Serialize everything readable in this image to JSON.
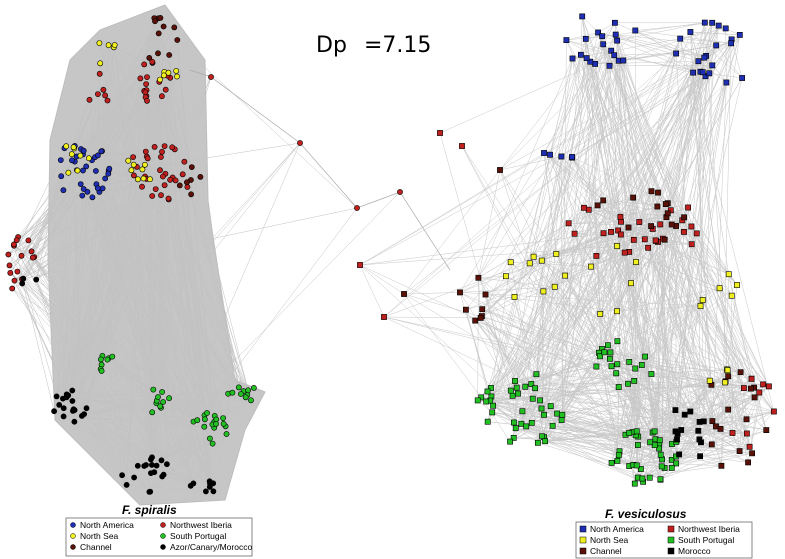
{
  "figure": {
    "statistic_label": "Dp",
    "statistic_value": "=7.15"
  },
  "colors": {
    "north_america": "#1f2fb4",
    "northwest_iberia": "#c0201e",
    "north_sea": "#f0f020",
    "south_portugal": "#22c022",
    "channel": "#5a1208",
    "azor_canary_morocco": "#000000",
    "edge": "#c6c6c6"
  },
  "left_panel": {
    "species": "F. spiralis",
    "marker": "circle",
    "legend": [
      {
        "label": "North America",
        "key": "north_america"
      },
      {
        "label": "Northwest Iberia",
        "key": "northwest_iberia"
      },
      {
        "label": "North Sea",
        "key": "north_sea"
      },
      {
        "label": "South Portugal",
        "key": "south_portugal"
      },
      {
        "label": "Channel",
        "key": "channel"
      },
      {
        "label": "Azor/Canary/Morocco",
        "key": "azor_canary_morocco"
      }
    ]
  },
  "right_panel": {
    "species": "F. vesiculosus",
    "marker": "square",
    "legend": [
      {
        "label": "North America",
        "key": "north_america"
      },
      {
        "label": "Northwest Iberia",
        "key": "northwest_iberia"
      },
      {
        "label": "North Sea",
        "key": "north_sea"
      },
      {
        "label": "South Portugal",
        "key": "south_portugal"
      },
      {
        "label": "Channel",
        "key": "channel"
      },
      {
        "label": "Morocco",
        "key": "azor_canary_morocco"
      }
    ]
  }
}
